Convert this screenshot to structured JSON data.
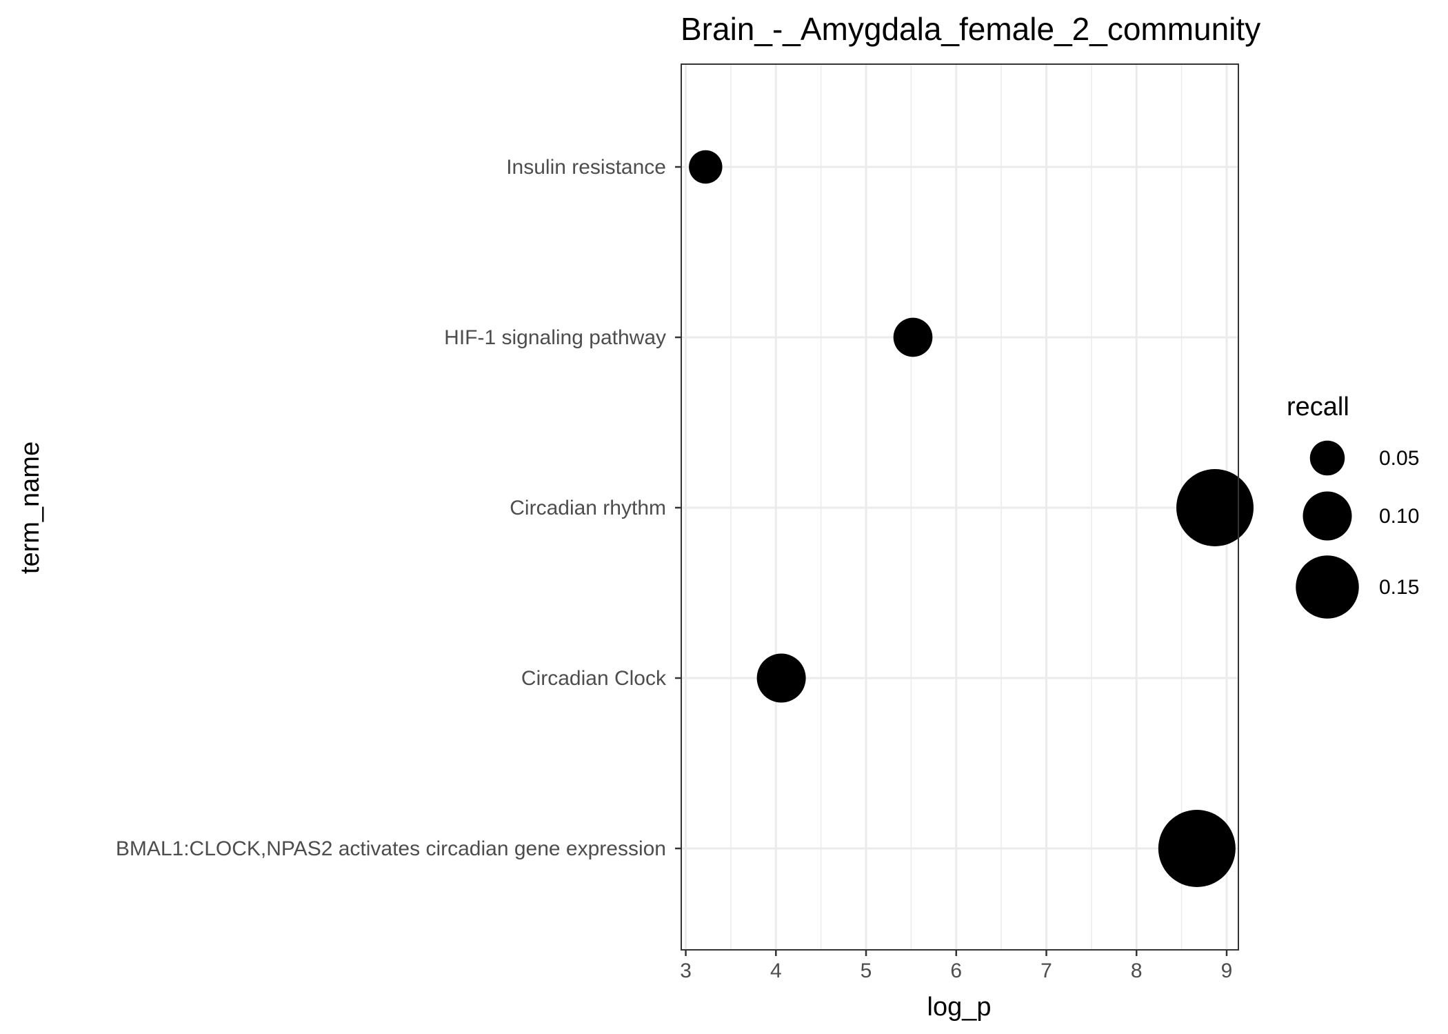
{
  "chart_data": {
    "type": "scatter",
    "title": "Brain_-_Amygdala_female_2_community",
    "xlabel": "log_p",
    "ylabel": "term_name",
    "xlim": [
      2.95,
      9.13
    ],
    "x_ticks": [
      3,
      4,
      5,
      6,
      7,
      8,
      9
    ],
    "categories": [
      "Insulin resistance",
      "HIF-1 signaling pathway",
      "Circadian rhythm",
      "Circadian Clock",
      "BMAL1:CLOCK,NPAS2 activates circadian gene expression"
    ],
    "points": [
      {
        "term": "Insulin resistance",
        "log_p": 3.22,
        "recall": 0.045
      },
      {
        "term": "HIF-1 signaling pathway",
        "log_p": 5.52,
        "recall": 0.065
      },
      {
        "term": "Circadian rhythm",
        "log_p": 8.87,
        "recall": 0.2
      },
      {
        "term": "Circadian Clock",
        "log_p": 4.06,
        "recall": 0.1
      },
      {
        "term": "BMAL1:CLOCK,NPAS2 activates circadian gene expression",
        "log_p": 8.67,
        "recall": 0.2
      }
    ],
    "legend": {
      "title": "recall",
      "position": "right",
      "entries": [
        {
          "label": "0.05",
          "value": 0.05
        },
        {
          "label": "0.10",
          "value": 0.1
        },
        {
          "label": "0.15",
          "value": 0.15
        }
      ]
    },
    "grid": true,
    "colors": {
      "point": "#000000",
      "grid": "#ebebeb",
      "panel_border": "#333333",
      "tick_text": "#4d4d4d"
    }
  }
}
